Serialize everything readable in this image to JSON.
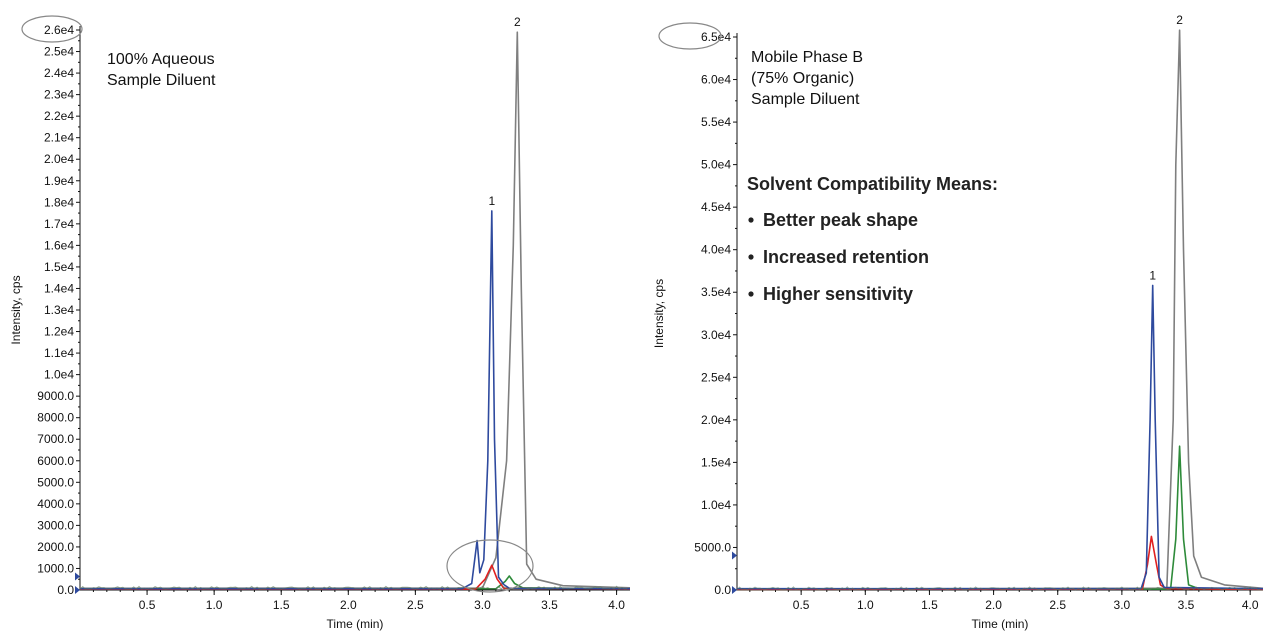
{
  "chart_data": [
    {
      "type": "line",
      "title": "",
      "xlabel": "Time (min)",
      "ylabel": "Intensity, cps",
      "xlim": [
        0,
        4.1
      ],
      "ylim": [
        0,
        26000
      ],
      "x_ticks": [
        0.5,
        1.0,
        1.5,
        2.0,
        2.5,
        3.0,
        3.5,
        4.0
      ],
      "x_tick_labels": [
        "0.5",
        "1.0",
        "1.5",
        "2.0",
        "2.5",
        "3.0",
        "3.5",
        "4.0"
      ],
      "y_ticks": [
        0,
        1000,
        2000,
        3000,
        4000,
        5000,
        6000,
        7000,
        8000,
        9000,
        10000,
        11000,
        12000,
        13000,
        14000,
        15000,
        16000,
        17000,
        18000,
        19000,
        20000,
        21000,
        22000,
        23000,
        24000,
        25000,
        26000
      ],
      "y_tick_labels": [
        "0.0",
        "1000.0",
        "2000.0",
        "3000.0",
        "4000.0",
        "5000.0",
        "6000.0",
        "7000.0",
        "8000.0",
        "9000.0",
        "1.0e4",
        "1.1e4",
        "1.2e4",
        "1.3e4",
        "1.4e4",
        "1.5e4",
        "1.6e4",
        "1.7e4",
        "1.8e4",
        "1.9e4",
        "2.0e4",
        "2.1e4",
        "2.2e4",
        "2.3e4",
        "2.4e4",
        "2.5e4",
        "2.6e4"
      ],
      "annotations": [
        "100% Aqueous",
        "Sample Diluent"
      ],
      "peak_labels": [
        {
          "text": "1",
          "x": 3.07,
          "y": 17600
        },
        {
          "text": "2",
          "x": 3.26,
          "y": 25900
        }
      ],
      "series": [
        {
          "color": "#2e4a9e",
          "points": [
            [
              0,
              60
            ],
            [
              2.85,
              60
            ],
            [
              2.92,
              300
            ],
            [
              2.96,
              2300
            ],
            [
              2.98,
              800
            ],
            [
              3.01,
              1400
            ],
            [
              3.04,
              6000
            ],
            [
              3.07,
              17600
            ],
            [
              3.09,
              7000
            ],
            [
              3.12,
              600
            ],
            [
              3.16,
              250
            ],
            [
              3.2,
              80
            ],
            [
              4.1,
              60
            ]
          ]
        },
        {
          "color": "#7f7f7f",
          "points": [
            [
              0,
              80
            ],
            [
              3.0,
              90
            ],
            [
              3.1,
              1500
            ],
            [
              3.18,
              6000
            ],
            [
              3.23,
              16000
            ],
            [
              3.26,
              25900
            ],
            [
              3.29,
              14000
            ],
            [
              3.33,
              1200
            ],
            [
              3.4,
              500
            ],
            [
              3.6,
              200
            ],
            [
              4.1,
              100
            ]
          ]
        },
        {
          "color": "#e02020",
          "points": [
            [
              0,
              40
            ],
            [
              2.95,
              40
            ],
            [
              3.02,
              500
            ],
            [
              3.07,
              1150
            ],
            [
              3.11,
              500
            ],
            [
              3.16,
              80
            ],
            [
              4.1,
              40
            ]
          ]
        },
        {
          "color": "#2e8b3a",
          "points": [
            [
              0,
              50
            ],
            [
              3.1,
              60
            ],
            [
              3.17,
              400
            ],
            [
              3.2,
              650
            ],
            [
              3.24,
              300
            ],
            [
              3.3,
              100
            ],
            [
              4.1,
              50
            ]
          ]
        }
      ]
    },
    {
      "type": "line",
      "title": "",
      "xlabel": "Time (min)",
      "ylabel": "Intensity, cps",
      "xlim": [
        0,
        4.1
      ],
      "ylim": [
        0,
        65000
      ],
      "x_ticks": [
        0.5,
        1.0,
        1.5,
        2.0,
        2.5,
        3.0,
        3.5,
        4.0
      ],
      "x_tick_labels": [
        "0.5",
        "1.0",
        "1.5",
        "2.0",
        "2.5",
        "3.0",
        "3.5",
        "4.0"
      ],
      "y_ticks": [
        0,
        5000,
        10000,
        15000,
        20000,
        25000,
        30000,
        35000,
        40000,
        45000,
        50000,
        55000,
        60000,
        65000
      ],
      "y_tick_labels": [
        "0.0",
        "5000.0",
        "1.0e4",
        "1.5e4",
        "2.0e4",
        "2.5e4",
        "3.0e4",
        "3.5e4",
        "4.0e4",
        "4.5e4",
        "5.0e4",
        "5.5e4",
        "6.0e4",
        "6.5e4"
      ],
      "annotations": [
        "Mobile Phase B",
        "(75% Organic)",
        "Sample Diluent"
      ],
      "callout": {
        "title": "Solvent Compatibility Means:",
        "items": [
          "Better peak shape",
          "Increased retention",
          "Higher sensitivity"
        ]
      },
      "peak_labels": [
        {
          "text": "1",
          "x": 3.24,
          "y": 35800
        },
        {
          "text": "2",
          "x": 3.45,
          "y": 65800
        }
      ],
      "series": [
        {
          "color": "#2e4a9e",
          "points": [
            [
              0,
              150
            ],
            [
              3.15,
              150
            ],
            [
              3.19,
              2000
            ],
            [
              3.22,
              20000
            ],
            [
              3.24,
              35800
            ],
            [
              3.26,
              20000
            ],
            [
              3.29,
              1500
            ],
            [
              3.33,
              300
            ],
            [
              4.1,
              150
            ]
          ]
        },
        {
          "color": "#7f7f7f",
          "points": [
            [
              0,
              100
            ],
            [
              3.35,
              200
            ],
            [
              3.4,
              20000
            ],
            [
              3.42,
              50000
            ],
            [
              3.45,
              65800
            ],
            [
              3.48,
              40000
            ],
            [
              3.52,
              15000
            ],
            [
              3.56,
              4000
            ],
            [
              3.62,
              1500
            ],
            [
              3.8,
              600
            ],
            [
              4.1,
              200
            ]
          ]
        },
        {
          "color": "#e02020",
          "points": [
            [
              0,
              80
            ],
            [
              3.16,
              100
            ],
            [
              3.2,
              3000
            ],
            [
              3.23,
              6300
            ],
            [
              3.27,
              3000
            ],
            [
              3.3,
              600
            ],
            [
              3.35,
              150
            ],
            [
              4.1,
              80
            ]
          ]
        },
        {
          "color": "#2e8b3a",
          "points": [
            [
              0,
              80
            ],
            [
              3.38,
              100
            ],
            [
              3.42,
              6000
            ],
            [
              3.45,
              16900
            ],
            [
              3.48,
              6000
            ],
            [
              3.52,
              600
            ],
            [
              3.6,
              150
            ],
            [
              4.1,
              80
            ]
          ]
        }
      ]
    }
  ]
}
